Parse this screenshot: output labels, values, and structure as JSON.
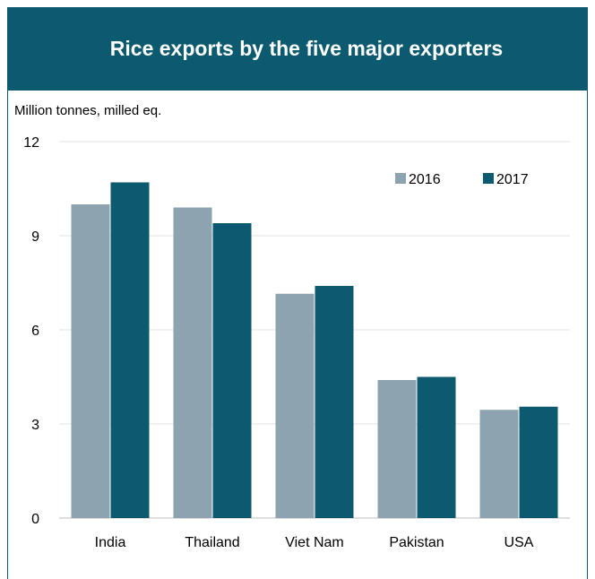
{
  "header": {
    "title": "Rice exports by the five major exporters"
  },
  "chart_data": {
    "type": "bar",
    "title": "Rice exports by the five major exporters",
    "ylabel": "Million tonnes, milled eq.",
    "xlabel": "",
    "categories": [
      "India",
      "Thailand",
      "Viet Nam",
      "Pakistan",
      "USA"
    ],
    "series": [
      {
        "name": "2016",
        "color": "#8ea3b0",
        "values": [
          10.0,
          9.9,
          7.15,
          4.4,
          3.45
        ]
      },
      {
        "name": "2017",
        "color": "#0c5a70",
        "values": [
          10.7,
          9.4,
          7.4,
          4.5,
          3.55
        ]
      }
    ],
    "ylim": [
      0,
      12
    ],
    "yticks": [
      "0",
      "3",
      "6",
      "9",
      "12"
    ],
    "grid": true,
    "legend_position": "top-right"
  }
}
